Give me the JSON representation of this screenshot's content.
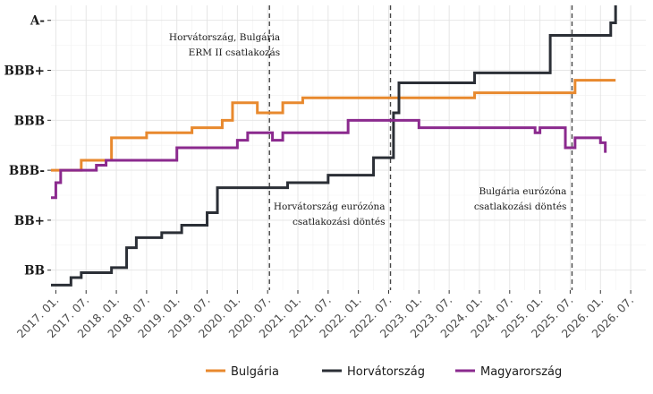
{
  "chart_data": {
    "type": "line",
    "step": true,
    "title": "",
    "xlabel": "",
    "ylabel": "",
    "grid": true,
    "legend_position": "bottom",
    "xlim": [
      2016.92,
      2026.75
    ],
    "y_categories": [
      "BB",
      "BB+",
      "BBB-",
      "BBB",
      "BBB+",
      "A-"
    ],
    "ylim": [
      -0.4,
      5.3
    ],
    "x_ticks": [
      2017.0,
      2017.5,
      2018.0,
      2018.5,
      2019.0,
      2019.5,
      2020.0,
      2020.5,
      2021.0,
      2021.5,
      2022.0,
      2022.5,
      2023.0,
      2023.5,
      2024.0,
      2024.5,
      2025.0,
      2025.5,
      2026.0,
      2026.5
    ],
    "x_tick_labels": [
      "2017. 01.",
      "2017. 07.",
      "2018. 01.",
      "2018. 07.",
      "2019. 01.",
      "2019. 07.",
      "2020. 01.",
      "2020. 07.",
      "2021. 01.",
      "2021. 07.",
      "2022. 01.",
      "2022. 07.",
      "2023. 01.",
      "2023. 07.",
      "2024. 01.",
      "2024. 07.",
      "2025. 01.",
      "2025. 07.",
      "2026. 01.",
      "2026. 07."
    ],
    "vlines": [
      {
        "x": 2020.53,
        "label_lines": [
          "Horvátország, Bulgária",
          "ERM II csatlakozás"
        ]
      },
      {
        "x": 2022.53,
        "label_lines": [
          "Horvátország eurózóna",
          "csatlakozási döntés"
        ]
      },
      {
        "x": 2025.53,
        "label_lines": [
          "Bulgária eurózóna",
          "csatlakozási döntés"
        ]
      }
    ],
    "series": [
      {
        "name": "Bulgária",
        "color": "#E8892E",
        "points": [
          [
            2016.92,
            2.0
          ],
          [
            2017.42,
            2.0
          ],
          [
            2017.42,
            2.2
          ],
          [
            2017.92,
            2.2
          ],
          [
            2017.92,
            2.65
          ],
          [
            2018.5,
            2.65
          ],
          [
            2018.5,
            2.75
          ],
          [
            2019.25,
            2.75
          ],
          [
            2019.25,
            2.85
          ],
          [
            2019.75,
            2.85
          ],
          [
            2019.75,
            3.0
          ],
          [
            2019.92,
            3.0
          ],
          [
            2019.92,
            3.35
          ],
          [
            2020.33,
            3.35
          ],
          [
            2020.33,
            3.15
          ],
          [
            2020.75,
            3.15
          ],
          [
            2020.75,
            3.35
          ],
          [
            2021.08,
            3.35
          ],
          [
            2021.08,
            3.45
          ],
          [
            2023.92,
            3.45
          ],
          [
            2023.92,
            3.55
          ],
          [
            2025.58,
            3.55
          ],
          [
            2025.58,
            3.8
          ],
          [
            2026.25,
            3.8
          ]
        ]
      },
      {
        "name": "Horvátország",
        "color": "#2B2F36",
        "points": [
          [
            2016.92,
            -0.3
          ],
          [
            2017.25,
            -0.3
          ],
          [
            2017.25,
            -0.15
          ],
          [
            2017.42,
            -0.15
          ],
          [
            2017.42,
            -0.05
          ],
          [
            2017.92,
            -0.05
          ],
          [
            2017.92,
            0.05
          ],
          [
            2018.17,
            0.05
          ],
          [
            2018.17,
            0.45
          ],
          [
            2018.33,
            0.45
          ],
          [
            2018.33,
            0.65
          ],
          [
            2018.75,
            0.65
          ],
          [
            2018.75,
            0.75
          ],
          [
            2019.08,
            0.75
          ],
          [
            2019.08,
            0.9
          ],
          [
            2019.5,
            0.9
          ],
          [
            2019.5,
            1.15
          ],
          [
            2019.67,
            1.15
          ],
          [
            2019.67,
            1.65
          ],
          [
            2020.83,
            1.65
          ],
          [
            2020.83,
            1.75
          ],
          [
            2021.5,
            1.75
          ],
          [
            2021.5,
            1.9
          ],
          [
            2022.25,
            1.9
          ],
          [
            2022.25,
            2.25
          ],
          [
            2022.5,
            2.25
          ],
          [
            2022.5,
            2.25
          ],
          [
            2022.58,
            2.25
          ],
          [
            2022.58,
            3.15
          ],
          [
            2022.67,
            3.15
          ],
          [
            2022.67,
            3.75
          ],
          [
            2023.92,
            3.75
          ],
          [
            2023.92,
            3.95
          ],
          [
            2025.17,
            3.95
          ],
          [
            2025.17,
            4.7
          ],
          [
            2026.17,
            4.7
          ],
          [
            2026.17,
            4.95
          ],
          [
            2026.25,
            4.95
          ],
          [
            2026.25,
            5.3
          ]
        ]
      },
      {
        "name": "Magyarország",
        "color": "#8B2A8E",
        "points": [
          [
            2016.92,
            1.45
          ],
          [
            2017.0,
            1.45
          ],
          [
            2017.0,
            1.75
          ],
          [
            2017.08,
            1.75
          ],
          [
            2017.08,
            2.0
          ],
          [
            2017.67,
            2.0
          ],
          [
            2017.67,
            2.1
          ],
          [
            2017.83,
            2.1
          ],
          [
            2017.83,
            2.2
          ],
          [
            2019.0,
            2.2
          ],
          [
            2019.0,
            2.45
          ],
          [
            2020.0,
            2.45
          ],
          [
            2020.0,
            2.6
          ],
          [
            2020.17,
            2.6
          ],
          [
            2020.17,
            2.75
          ],
          [
            2020.58,
            2.75
          ],
          [
            2020.58,
            2.6
          ],
          [
            2020.75,
            2.6
          ],
          [
            2020.75,
            2.75
          ],
          [
            2021.83,
            2.75
          ],
          [
            2021.83,
            3.0
          ],
          [
            2023.0,
            3.0
          ],
          [
            2023.0,
            2.85
          ],
          [
            2024.92,
            2.85
          ],
          [
            2024.92,
            2.75
          ],
          [
            2025.0,
            2.75
          ],
          [
            2025.0,
            2.85
          ],
          [
            2025.42,
            2.85
          ],
          [
            2025.42,
            2.45
          ],
          [
            2025.58,
            2.45
          ],
          [
            2025.58,
            2.65
          ],
          [
            2026.0,
            2.65
          ],
          [
            2026.0,
            2.55
          ],
          [
            2026.08,
            2.55
          ],
          [
            2026.08,
            2.35
          ]
        ]
      }
    ]
  }
}
